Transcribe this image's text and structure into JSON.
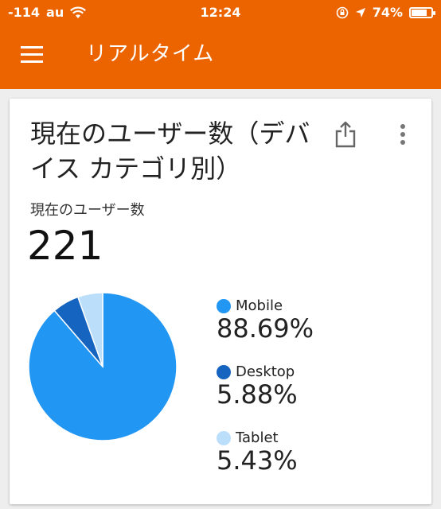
{
  "status_bar": {
    "signal": "-114",
    "carrier": "au",
    "time": "12:24",
    "battery": "74%",
    "battery_level": 0.74,
    "icons": [
      "wifi-icon",
      "rotation-lock-icon",
      "location-arrow-icon",
      "battery-icon"
    ]
  },
  "app_bar": {
    "title": "リアルタイム",
    "menu_icon": "hamburger-menu-icon",
    "background": "#ec6400"
  },
  "card": {
    "title": "現在のユーザー数（デバイス カテゴリ別）",
    "share_icon": "share-icon",
    "more_icon": "more-vert-icon",
    "metric_label": "現在のユーザー数",
    "metric_value": "221"
  },
  "chart_data": {
    "type": "pie",
    "categories": [
      "Mobile",
      "Desktop",
      "Tablet"
    ],
    "values": [
      88.69,
      5.88,
      5.43
    ],
    "labels": [
      "88.69%",
      "5.88%",
      "5.43%"
    ],
    "colors": [
      "#2196f3",
      "#1565c0",
      "#bbdefb"
    ],
    "legend": "right"
  }
}
